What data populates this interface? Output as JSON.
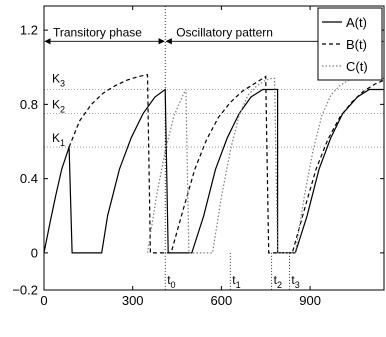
{
  "chart_data": {
    "type": "line",
    "xlim": [
      0,
      1150
    ],
    "ylim": [
      -0.2,
      1.33
    ],
    "xticks": [
      0,
      300,
      600,
      900
    ],
    "yticks": [
      -0.2,
      0,
      0.4,
      0.8,
      1.2
    ],
    "xtick_labels": [
      "0",
      "300",
      "600",
      "900"
    ],
    "ytick_labels": [
      "−0.2",
      "0",
      "0.4",
      "0.8",
      "1.2"
    ],
    "grid": false,
    "legend_position": "top-right",
    "series": [
      {
        "name": "A(t)",
        "style": "solid",
        "color": "#000000",
        "x": [
          0,
          20,
          40,
          60,
          85,
          85,
          95,
          195,
          215,
          255,
          295,
          335,
          375,
          410,
          410,
          420,
          470,
          500,
          540,
          580,
          620,
          660,
          700,
          740,
          760,
          790,
          790,
          830,
          850,
          890,
          930,
          970,
          1010,
          1060,
          1100,
          1150
        ],
        "y": [
          0,
          0.16,
          0.31,
          0.45,
          0.57,
          0.57,
          0,
          0,
          0.2,
          0.45,
          0.62,
          0.75,
          0.84,
          0.88,
          0.88,
          0,
          0,
          0,
          0.2,
          0.45,
          0.62,
          0.75,
          0.84,
          0.88,
          0.88,
          0.88,
          0,
          0,
          0,
          0.2,
          0.45,
          0.62,
          0.75,
          0.84,
          0.88,
          0.88
        ]
      },
      {
        "name": "B(t)",
        "style": "dashed",
        "color": "#000000",
        "x": [
          85,
          120,
          160,
          200,
          240,
          280,
          320,
          350,
          350,
          360,
          420,
          430,
          470,
          510,
          550,
          590,
          630,
          670,
          710,
          750,
          750,
          760,
          830,
          840,
          880,
          920,
          960,
          1000,
          1040,
          1080,
          1120,
          1150
        ],
        "y": [
          0.57,
          0.71,
          0.8,
          0.86,
          0.9,
          0.93,
          0.95,
          0.96,
          0.96,
          0,
          0,
          0,
          0.23,
          0.45,
          0.61,
          0.73,
          0.81,
          0.87,
          0.91,
          0.95,
          0.95,
          0,
          0,
          0,
          0.23,
          0.45,
          0.61,
          0.73,
          0.81,
          0.87,
          0.91,
          0.93
        ]
      },
      {
        "name": "C(t)",
        "style": "dotted",
        "color": "#7f7f7f",
        "x": [
          350,
          380,
          410,
          440,
          470,
          480,
          480,
          490,
          560,
          570,
          600,
          630,
          660,
          690,
          720,
          750,
          770,
          780,
          780,
          790,
          820,
          850,
          880,
          910,
          940,
          970,
          1000,
          1030,
          1060,
          1100,
          1150
        ],
        "y": [
          0,
          0.3,
          0.55,
          0.74,
          0.85,
          0.88,
          0.88,
          0,
          0,
          0,
          0.3,
          0.55,
          0.74,
          0.85,
          0.9,
          0.93,
          0.94,
          0.94,
          0.94,
          0,
          0,
          0,
          0.3,
          0.55,
          0.74,
          0.85,
          0.9,
          0.93,
          0.94,
          0.94,
          0.94
        ]
      }
    ],
    "hlines": [
      {
        "label": "K1",
        "sub": "1",
        "y": 0.57
      },
      {
        "label": "K2",
        "sub": "2",
        "y": 0.75
      },
      {
        "label": "K3",
        "sub": "3",
        "y": 0.88
      }
    ],
    "vlines": [
      {
        "label": "t0",
        "sub": "0",
        "x": 410
      },
      {
        "label": "t1",
        "sub": "1",
        "x": 630
      },
      {
        "label": "t2",
        "sub": "2",
        "x": 770
      },
      {
        "label": "t3",
        "sub": "3",
        "x": 830
      }
    ],
    "phase_annotations": [
      {
        "label": "Transitory phase",
        "x_start": 0,
        "x_end": 410,
        "y": 1.14
      },
      {
        "label": "Oscillatory pattern",
        "x_start": 410,
        "x_end": 1150,
        "y": 1.14
      }
    ],
    "legend": [
      "A(t)",
      "B(t)",
      "C(t)"
    ]
  }
}
